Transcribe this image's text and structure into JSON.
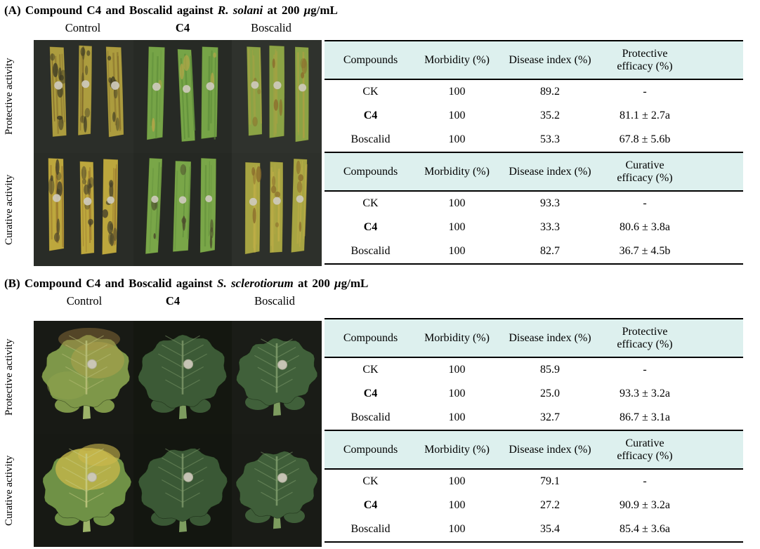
{
  "colors": {
    "table_header_bg": "#ddf0ee",
    "table_border": "#000000",
    "photo_bg_panel_a": "#2b2e29",
    "photo_bg_panel_b": "#171914",
    "inoculation_disc": "#cdc9bb",
    "leaf_healthy_green": "#76a447",
    "leaf_diseased_yellow": "#b3a23c",
    "leaf_dark_green": "#3c5a36"
  },
  "table_headers": [
    "Compounds",
    "Morbidity (%)",
    "Disease index (%)"
  ],
  "panels": [
    {
      "label": "(A)",
      "title_before": "Compound C4 and Boscalid against",
      "title_species": "R. solani",
      "title_after": "at 200",
      "title_mu": "μ",
      "title_unit": "g/mL",
      "photo_labels": [
        "Control",
        "C4",
        "Boscalid"
      ],
      "row_labels": [
        "Protective activity",
        "Curative activity"
      ],
      "tables": [
        {
          "efficacy_header": [
            "Protective",
            "efficacy (%)"
          ],
          "rows": [
            [
              "CK",
              "100",
              "89.2",
              "-"
            ],
            [
              "C4",
              "100",
              "35.2",
              "81.1 ± 2.7a"
            ],
            [
              "Boscalid",
              "100",
              "53.3",
              "67.8 ± 5.6b"
            ]
          ]
        },
        {
          "efficacy_header": [
            "Curative",
            "efficacy (%)"
          ],
          "rows": [
            [
              "CK",
              "100",
              "93.3",
              "-"
            ],
            [
              "C4",
              "100",
              "33.3",
              "80.6 ± 3.8a"
            ],
            [
              "Boscalid",
              "100",
              "82.7",
              "36.7 ± 4.5b"
            ]
          ]
        }
      ]
    },
    {
      "label": "(B)",
      "title_before": "Compound C4 and Boscalid against",
      "title_species": "S. sclerotiorum",
      "title_after": "at 200",
      "title_mu": "μ",
      "title_unit": "g/mL",
      "photo_labels": [
        "Control",
        "C4",
        "Boscalid"
      ],
      "row_labels": [
        "Protective activity",
        "Curative activity"
      ],
      "tables": [
        {
          "efficacy_header": [
            "Protective",
            "efficacy (%)"
          ],
          "rows": [
            [
              "CK",
              "100",
              "85.9",
              "-"
            ],
            [
              "C4",
              "100",
              "25.0",
              "93.3 ± 3.2a"
            ],
            [
              "Boscalid",
              "100",
              "32.7",
              "86.7 ± 3.1a"
            ]
          ]
        },
        {
          "efficacy_header": [
            "Curative",
            "efficacy (%)"
          ],
          "rows": [
            [
              "CK",
              "100",
              "79.1",
              "-"
            ],
            [
              "C4",
              "100",
              "27.2",
              "90.9 ± 3.2a"
            ],
            [
              "Boscalid",
              "100",
              "35.4",
              "85.4 ± 3.6a"
            ]
          ]
        }
      ]
    }
  ]
}
